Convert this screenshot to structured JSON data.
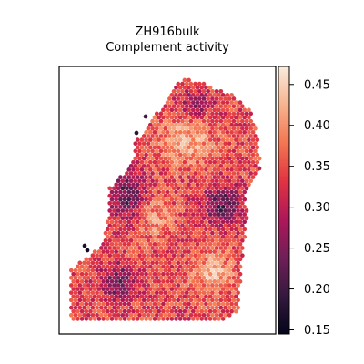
{
  "chart_data": {
    "type": "heatmap",
    "title_line1": "ZH916bulk",
    "title_line2": "Complement activity",
    "xlabel": "",
    "ylabel": "",
    "colorbar": {
      "min": 0.145,
      "max": 0.472,
      "ticks": [
        0.15,
        0.2,
        0.25,
        0.3,
        0.35,
        0.4,
        0.45
      ],
      "tick_labels": [
        "0.15",
        "0.20",
        "0.25",
        "0.30",
        "0.35",
        "0.40",
        "0.45"
      ],
      "colormap": "rocket",
      "stops": [
        "#03051a",
        "#35193e",
        "#701f57",
        "#ad1759",
        "#e13342",
        "#f37651",
        "#f6b48f",
        "#faebdd"
      ]
    },
    "grid": false,
    "legend": "colorbar-right",
    "spot_summary": {
      "typical_value": 0.34,
      "low_region_value": 0.22,
      "high_region_value": 0.42
    }
  }
}
